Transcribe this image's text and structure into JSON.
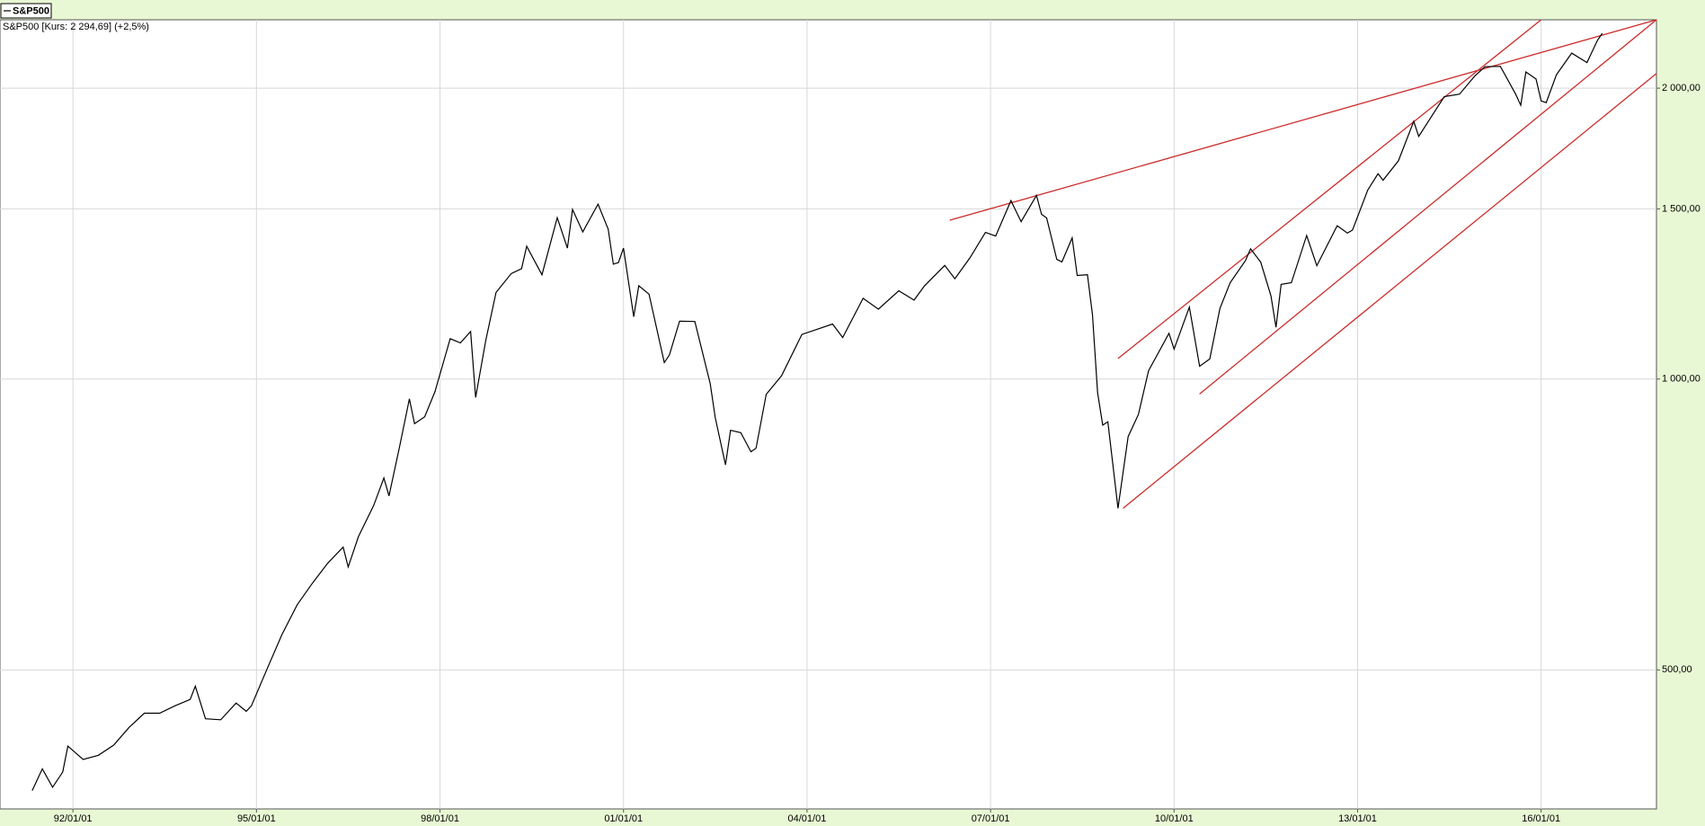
{
  "chart_data": {
    "type": "line",
    "subtitle": "S&P500 [Kurs: 2 294,69] (+2,5%)",
    "log_scale": true,
    "grid": true,
    "legend": "top-left",
    "xlim": [
      "90/10/22",
      "17/11/20"
    ],
    "xticks": [
      "92/01/01",
      "95/01/01",
      "98/01/01",
      "01/01/01",
      "04/01/01",
      "07/01/01",
      "10/01/01",
      "13/01/01",
      "16/01/01"
    ],
    "ylim": [
      359,
      2354
    ],
    "yticks": [
      {
        "value": 500,
        "label": "500,00"
      },
      {
        "value": 1000,
        "label": "1 000,00"
      },
      {
        "value": 1500,
        "label": "1 500,00"
      },
      {
        "value": 2000,
        "label": "2 000,00"
      }
    ],
    "series": [
      {
        "name": "S&P500",
        "color": "#000000",
        "x": [
          "91/05/01",
          "91/07/01",
          "91/09/01",
          "91/11/01",
          "91/12/01",
          "92/03/01",
          "92/06/01",
          "92/09/01",
          "92/12/01",
          "93/03/01",
          "93/06/01",
          "93/09/01",
          "93/12/01",
          "94/01/01",
          "94/03/01",
          "94/06/01",
          "94/09/01",
          "94/11/01",
          "94/12/01",
          "95/03/01",
          "95/06/01",
          "95/09/01",
          "95/12/01",
          "96/03/01",
          "96/06/01",
          "96/07/01",
          "96/09/01",
          "96/12/01",
          "97/02/01",
          "97/03/01",
          "97/05/01",
          "97/07/01",
          "97/08/01",
          "97/10/01",
          "97/12/01",
          "98/03/01",
          "98/05/01",
          "98/07/01",
          "98/08/01",
          "98/10/01",
          "98/12/01",
          "99/03/01",
          "99/05/01",
          "99/06/01",
          "99/09/01",
          "99/12/01",
          "00/02/01",
          "00/03/01",
          "00/05/01",
          "00/08/01",
          "00/10/01",
          "00/11/01",
          "00/12/01",
          "01/01/01",
          "01/03/01",
          "01/04/01",
          "01/06/01",
          "01/09/01",
          "01/10/01",
          "01/12/01",
          "02/03/01",
          "02/06/01",
          "02/07/01",
          "02/09/01",
          "02/10/01",
          "02/12/01",
          "03/02/01",
          "03/03/01",
          "03/05/01",
          "03/08/01",
          "03/12/01",
          "04/03/01",
          "04/06/01",
          "04/08/01",
          "04/12/01",
          "05/03/01",
          "05/07/01",
          "05/10/01",
          "05/12/01",
          "06/04/01",
          "06/06/01",
          "06/09/01",
          "06/12/01",
          "07/02/01",
          "07/05/01",
          "07/07/01",
          "07/10/01",
          "07/11/01",
          "07/12/01",
          "08/02/01",
          "08/03/01",
          "08/05/01",
          "08/06/01",
          "08/08/01",
          "08/09/01",
          "08/10/01",
          "08/11/01",
          "08/12/01",
          "09/02/01",
          "09/04/01",
          "09/06/01",
          "09/08/01",
          "09/12/01",
          "10/01/01",
          "10/04/01",
          "10/06/01",
          "10/08/01",
          "10/10/01",
          "10/12/01",
          "11/03/01",
          "11/04/01",
          "11/06/01",
          "11/08/01",
          "11/09/01",
          "11/10/01",
          "11/12/01",
          "12/03/01",
          "12/05/01",
          "12/09/01",
          "12/11/01",
          "12/12/01",
          "13/03/01",
          "13/05/01",
          "13/06/01",
          "13/09/01",
          "13/12/01",
          "14/01/01",
          "14/06/01",
          "14/09/01",
          "14/12/01",
          "15/02/01",
          "15/05/01",
          "15/08/01",
          "15/09/01",
          "15/10/01",
          "15/12/01",
          "16/01/01",
          "16/02/01",
          "16/04/01",
          "16/07/01",
          "16/10/01",
          "16/12/01",
          "17/01/01"
        ],
        "values": [
          375,
          395,
          378,
          392,
          417,
          404,
          408,
          418,
          436,
          451,
          451,
          459,
          466,
          481,
          445,
          444,
          462,
          453,
          459,
          500,
          544,
          584,
          615,
          645,
          670,
          639,
          687,
          740,
          790,
          757,
          848,
          954,
          899,
          914,
          970,
          1101,
          1090,
          1120,
          957,
          1098,
          1229,
          1286,
          1301,
          1372,
          1282,
          1469,
          1366,
          1498,
          1420,
          1517,
          1429,
          1315,
          1320,
          1366,
          1160,
          1249,
          1224,
          1040,
          1059,
          1148,
          1147,
          989,
          912,
          815,
          885,
          880,
          841,
          848,
          964,
          1008,
          1112,
          1126,
          1140,
          1104,
          1212,
          1181,
          1234,
          1207,
          1248,
          1311,
          1270,
          1336,
          1418,
          1406,
          1530,
          1455,
          1549,
          1481,
          1468,
          1330,
          1322,
          1400,
          1280,
          1282,
          1166,
          968,
          896,
          903,
          735,
          872,
          919,
          1020,
          1115,
          1074,
          1187,
          1031,
          1049,
          1183,
          1258,
          1326,
          1364,
          1321,
          1219,
          1131,
          1253,
          1258,
          1408,
          1310,
          1441,
          1416,
          1426,
          1569,
          1631,
          1606,
          1682,
          1848,
          1783,
          1960,
          1972,
          2059,
          2105,
          2107,
          1972,
          1920,
          2079,
          2044,
          1940,
          1932,
          2065,
          2174,
          2126,
          2239,
          2280
        ]
      }
    ],
    "trendlines": [
      {
        "color": "#cc2b2b",
        "x": [
          "06/05/01",
          "17/11/20"
        ],
        "y": [
          1460,
          2354
        ]
      },
      {
        "color": "#cc2b2b",
        "x": [
          "09/02/01",
          "16/01/01"
        ],
        "y": [
          1050,
          2354
        ]
      },
      {
        "color": "#cc2b2b",
        "x": [
          "10/06/01",
          "17/11/20"
        ],
        "y": [
          965,
          2354
        ]
      },
      {
        "color": "#cc2b2b",
        "x": [
          "09/03/01",
          "17/11/20"
        ],
        "y": [
          735,
          2071
        ]
      }
    ]
  }
}
